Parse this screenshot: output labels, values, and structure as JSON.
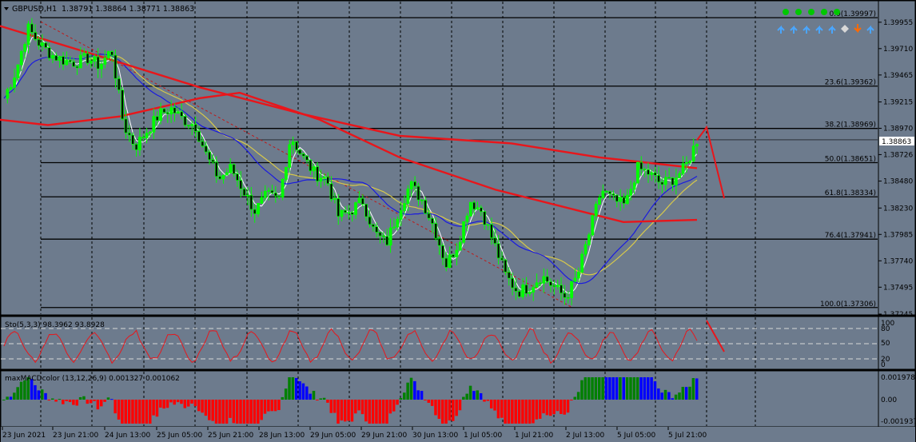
{
  "header": {
    "symbol_timeframe": "GBPUSD,H1",
    "ohlc": "1.38791 1.38864 1.38771 1.38863"
  },
  "colors": {
    "background": "#6d7b8d",
    "bull": "#00ff00",
    "bear": "#00ff00",
    "ma_red": "#e8161b",
    "ma_blue": "#1a1adf",
    "ma_yellow": "#d8c94a",
    "ma_white": "#ffffff",
    "fib_line": "#000000",
    "grid": "#000000",
    "macd_green": "#008000",
    "macd_blue": "#0000ff",
    "macd_red": "#ff0000",
    "stoch_line": "#e8161b"
  },
  "current_price": "1.38863",
  "price_axis": [
    "1.39955",
    "1.39710",
    "1.39465",
    "1.39215",
    "1.38970",
    "1.38726",
    "1.38480",
    "1.38230",
    "1.37985",
    "1.37740",
    "1.37495",
    "1.37245"
  ],
  "fib_levels": [
    {
      "label": "0.0(1.39997)",
      "price": 1.39997
    },
    {
      "label": "23.6(1.39362)",
      "price": 1.39362
    },
    {
      "label": "38.2(1.38969)",
      "price": 1.38969
    },
    {
      "label": "50.0(1.38651)",
      "price": 1.38651
    },
    {
      "label": "61.8(1.38334)",
      "price": 1.38334
    },
    {
      "label": "76.4(1.37941)",
      "price": 1.37941
    },
    {
      "label": "100.0(1.37306)",
      "price": 1.37306
    }
  ],
  "time_axis": [
    "23 Jun 2021",
    "23 Jun 21:00",
    "24 Jun 13:00",
    "25 Jun 05:00",
    "25 Jun 21:00",
    "28 Jun 13:00",
    "29 Jun 05:00",
    "29 Jun 21:00",
    "30 Jun 13:00",
    "1 Jul 05:00",
    "1 Jul 21:00",
    "2 Jul 13:00",
    "5 Jul 05:00",
    "5 Jul 21:00"
  ],
  "stochastic": {
    "title": "Sto(5,3,3) 98.3962 93.8928",
    "levels": [
      "100",
      "80",
      "50",
      "20",
      "0"
    ]
  },
  "macd": {
    "title": "maxMACDcolor (13,12,26,9) 0.001327 0.001062",
    "axis": [
      "0.001978",
      "0.00",
      "-0.001937"
    ]
  },
  "chart_data": {
    "type": "candlestick",
    "symbol": "GBPUSD",
    "timeframe": "H1",
    "price_range": [
      1.37245,
      1.4005
    ],
    "close_approx": [
      1.3925,
      1.395,
      1.399,
      1.3975,
      1.3965,
      1.396,
      1.3958,
      1.3962,
      1.3955,
      1.397,
      1.39,
      1.388,
      1.3895,
      1.391,
      1.3915,
      1.3905,
      1.39,
      1.387,
      1.385,
      1.386,
      1.384,
      1.382,
      1.3835,
      1.383,
      1.389,
      1.387,
      1.3855,
      1.385,
      1.3815,
      1.382,
      1.383,
      1.38,
      1.379,
      1.382,
      1.3845,
      1.383,
      1.3805,
      1.377,
      1.379,
      1.383,
      1.382,
      1.379,
      1.376,
      1.3745,
      1.375,
      1.376,
      1.375,
      1.374,
      1.376,
      1.38,
      1.384,
      1.383,
      1.3825,
      1.386,
      1.3855,
      1.3845,
      1.385,
      1.386,
      1.3886
    ]
  }
}
